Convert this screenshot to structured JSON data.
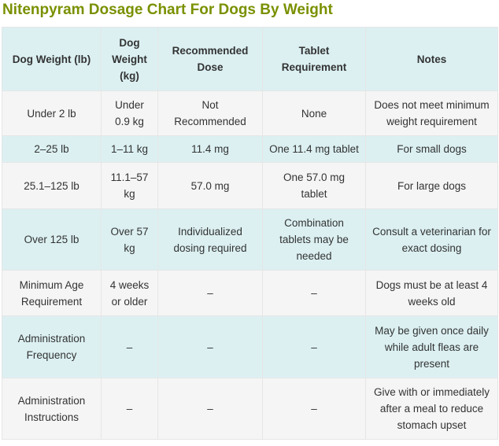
{
  "header": {
    "title": "Nitenpyram Dosage Chart For Dogs By Weight"
  },
  "table": {
    "columns": [
      "Dog Weight (lb)",
      "Dog Weight (kg)",
      "Recommended Dose",
      "Tablet Requirement",
      "Notes"
    ],
    "rows": [
      [
        "Under 2 lb",
        "Under 0.9 kg",
        "Not Recommended",
        "None",
        "Does not meet minimum weight requirement"
      ],
      [
        "2–25 lb",
        "1–11 kg",
        "11.4 mg",
        "One 11.4 mg tablet",
        "For small dogs"
      ],
      [
        "25.1–125 lb",
        "11.1–57 kg",
        "57.0 mg",
        "One 57.0 mg tablet",
        "For large dogs"
      ],
      [
        "Over 125 lb",
        "Over 57 kg",
        "Individualized dosing required",
        "Combination tablets may be needed",
        "Consult a veterinarian for exact dosing"
      ],
      [
        "Minimum Age Requirement",
        "4 weeks or older",
        "–",
        "–",
        "Dogs must be at least 4 weeks old"
      ],
      [
        "Administration Frequency",
        "–",
        "–",
        "–",
        "May be given once daily while adult fleas are present"
      ],
      [
        "Administration Instructions",
        "–",
        "–",
        "–",
        "Give with or immediately after a meal to reduce stomach upset"
      ]
    ]
  }
}
